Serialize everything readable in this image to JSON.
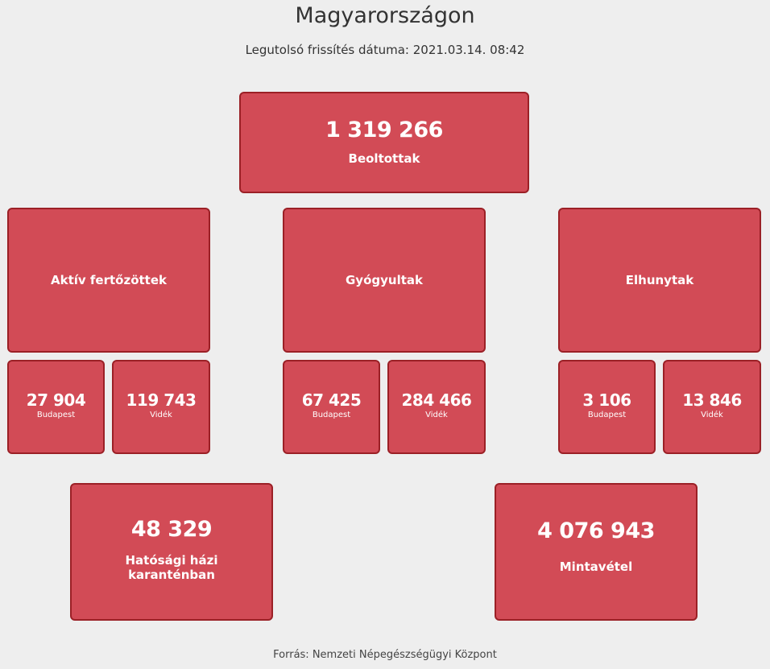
{
  "page": {
    "title": "Magyarországon",
    "updated": "Legutolsó frissítés dátuma: 2021.03.14. 08:42",
    "source": "Forrás: Nemzeti Népegészségügyi Központ"
  },
  "colors": {
    "box_fill": "#d24b56",
    "box_border": "#9b2026",
    "background": "#eeeeee"
  },
  "vaccinated": {
    "value": "1 319 266",
    "label": "Beoltottak"
  },
  "categories": [
    {
      "label": "Aktív fertőzöttek",
      "budapest": {
        "value": "27 904",
        "label": "Budapest"
      },
      "videk": {
        "value": "119 743",
        "label": "Vidék"
      }
    },
    {
      "label": "Gyógyultak",
      "budapest": {
        "value": "67 425",
        "label": "Budapest"
      },
      "videk": {
        "value": "284 466",
        "label": "Vidék"
      }
    },
    {
      "label": "Elhunytak",
      "budapest": {
        "value": "3 106",
        "label": "Budapest"
      },
      "videk": {
        "value": "13 846",
        "label": "Vidék"
      }
    }
  ],
  "quarantine": {
    "value": "48 329",
    "label": "Hatósági házi karanténban"
  },
  "samples": {
    "value": "4 076 943",
    "label": "Mintavétel"
  }
}
